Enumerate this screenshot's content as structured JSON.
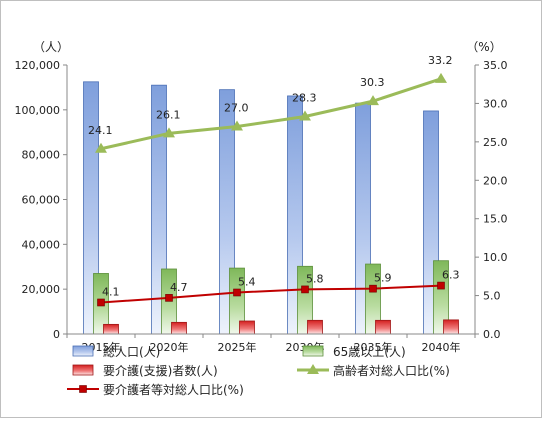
{
  "chart_data": {
    "type": "bar",
    "categories": [
      "2015年",
      "2020年",
      "2025年",
      "2030年",
      "2035年",
      "2040年"
    ],
    "left_axis": {
      "unit": "（人）",
      "ticks": [
        "0",
        "20,000",
        "40,000",
        "60,000",
        "80,000",
        "100,000",
        "120,000"
      ],
      "ylim": [
        0,
        120000
      ]
    },
    "right_axis": {
      "unit": "（%）",
      "ticks": [
        "0.0",
        "5.0",
        "10.0",
        "15.0",
        "20.0",
        "25.0",
        "30.0",
        "35.0"
      ],
      "ylim": [
        0,
        35
      ]
    },
    "series": [
      {
        "name": "総人口(人)",
        "kind": "bar",
        "axis": "left",
        "color": "#7f9fdc",
        "values": [
          112500,
          111000,
          109000,
          106200,
          103000,
          99500
        ]
      },
      {
        "name": "65歳以上(人)",
        "kind": "bar",
        "axis": "left",
        "color": "#8fc36a",
        "values": [
          27000,
          29000,
          29400,
          30200,
          31200,
          32700
        ]
      },
      {
        "name": "要介護(支援)者数(人)",
        "kind": "bar",
        "axis": "left",
        "color": "#e03030",
        "values": [
          4300,
          5200,
          5800,
          6100,
          6100,
          6300
        ]
      },
      {
        "name": "高齢者対総人口比(%)",
        "kind": "line",
        "axis": "right",
        "color": "#9bbb59",
        "values": [
          24.1,
          26.1,
          27.0,
          28.3,
          30.3,
          33.2
        ],
        "labels": [
          "24.1",
          "26.1",
          "27.0",
          "28.3",
          "30.3",
          "33.2"
        ]
      },
      {
        "name": "要介護者等対総人口比(%)",
        "kind": "line",
        "axis": "right",
        "color": "#c00000",
        "values": [
          4.1,
          4.7,
          5.4,
          5.8,
          5.9,
          6.3
        ],
        "labels": [
          "4.1",
          "4.7",
          "5.4",
          "5.8",
          "5.9",
          "6.3"
        ]
      }
    ],
    "grid": false,
    "legend_position": "bottom"
  }
}
